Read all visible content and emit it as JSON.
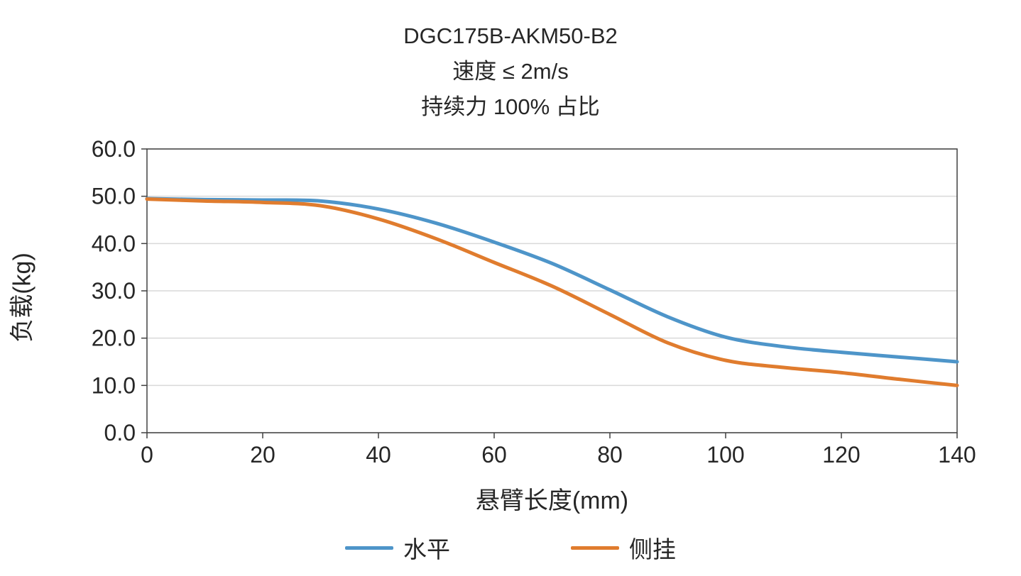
{
  "title": {
    "line1": "DGC175B-AKM50-B2",
    "line2": "速度 ≤ 2m/s",
    "line3": "持续力 100% 占比"
  },
  "chart_data": {
    "type": "line",
    "title": "DGC175B-AKM50-B2 速度 ≤ 2m/s 持续力 100% 占比",
    "xlabel": "悬臂长度(mm)",
    "ylabel": "负载(kg)",
    "xlim": [
      0,
      140
    ],
    "ylim": [
      0,
      60
    ],
    "x_ticks": [
      0,
      20,
      40,
      60,
      80,
      100,
      120,
      140
    ],
    "y_ticks": [
      "0.0",
      "10.0",
      "20.0",
      "30.0",
      "40.0",
      "50.0",
      "60.0"
    ],
    "grid": "horizontal",
    "legend_position": "bottom",
    "x": [
      0,
      10,
      20,
      30,
      40,
      50,
      60,
      70,
      80,
      90,
      100,
      110,
      120,
      130,
      140
    ],
    "series": [
      {
        "name": "水平",
        "color": "#4E95C9",
        "values": [
          49.5,
          49.3,
          49.2,
          49.0,
          47.3,
          44.3,
          40.3,
          35.8,
          30.2,
          24.5,
          20.2,
          18.2,
          17.0,
          16.0,
          15.0
        ]
      },
      {
        "name": "侧挂",
        "color": "#E07C2E",
        "values": [
          49.4,
          49.0,
          48.7,
          48.0,
          45.2,
          41.0,
          36.0,
          31.0,
          25.0,
          19.0,
          15.3,
          13.8,
          12.7,
          11.3,
          10.0
        ]
      }
    ],
    "colors": {
      "grid": "#D9D9D9",
      "axis": "#404040",
      "text": "#262626"
    }
  }
}
